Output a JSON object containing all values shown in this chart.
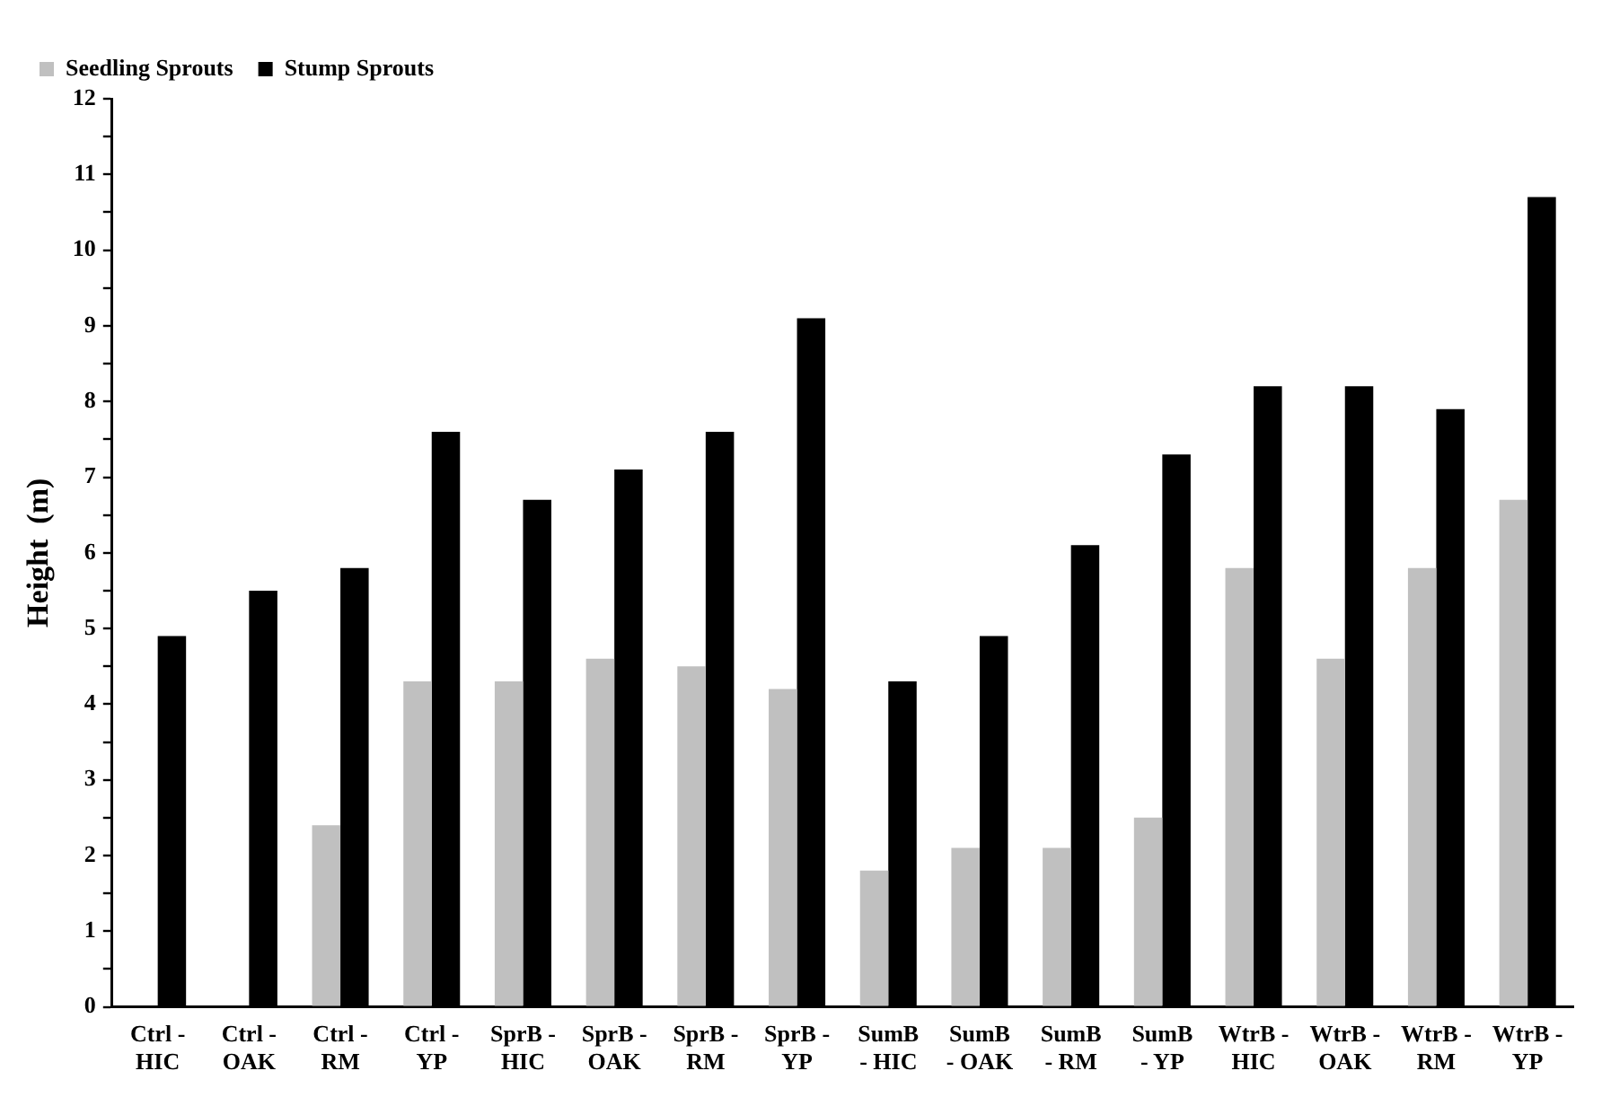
{
  "chart_data": {
    "type": "bar",
    "ylabel": "Height  (m)",
    "categories": [
      "Ctrl -\nHIC",
      "Ctrl -\nOAK",
      "Ctrl -\nRM",
      "Ctrl -\nYP",
      "SprB -\nHIC",
      "SprB -\nOAK",
      "SprB -\nRM",
      "SprB -\nYP",
      "SumB\n- HIC",
      "SumB\n- OAK",
      "SumB\n- RM",
      "SumB\n- YP",
      "WtrB -\nHIC",
      "WtrB -\nOAK",
      "WtrB -\nRM",
      "WtrB -\nYP"
    ],
    "series": [
      {
        "name": "Seedling Sprouts",
        "color": "#c0c0c0",
        "values": [
          null,
          null,
          2.4,
          4.3,
          4.3,
          4.6,
          4.5,
          4.2,
          1.8,
          2.1,
          2.1,
          2.5,
          5.8,
          4.6,
          5.8,
          6.7
        ]
      },
      {
        "name": "Stump Sprouts",
        "color": "#000000",
        "values": [
          4.9,
          5.5,
          5.8,
          7.6,
          6.7,
          7.1,
          7.6,
          9.1,
          4.3,
          4.9,
          6.1,
          7.3,
          8.2,
          8.2,
          7.9,
          10.7
        ]
      }
    ],
    "ylim": [
      0,
      12
    ],
    "yticks": [
      0,
      {
        "value": 0.5,
        "label": null
      },
      1,
      {
        "value": 1.5,
        "label": null
      },
      2,
      {
        "value": 2.5,
        "label": null
      },
      3,
      {
        "value": 3.5,
        "label": null
      },
      4,
      {
        "value": 4.5,
        "label": null
      },
      5,
      {
        "value": 5.5,
        "label": null
      },
      6,
      {
        "value": 6.5,
        "label": null
      },
      7,
      {
        "value": 7.5,
        "label": null
      },
      8,
      {
        "value": 8.5,
        "label": null
      },
      9,
      {
        "value": 9.5,
        "label": null
      },
      10,
      {
        "value": 10.5,
        "label": null
      },
      11,
      {
        "value": 11.5,
        "label": null
      },
      12
    ],
    "grid": false,
    "legend": "top left"
  }
}
